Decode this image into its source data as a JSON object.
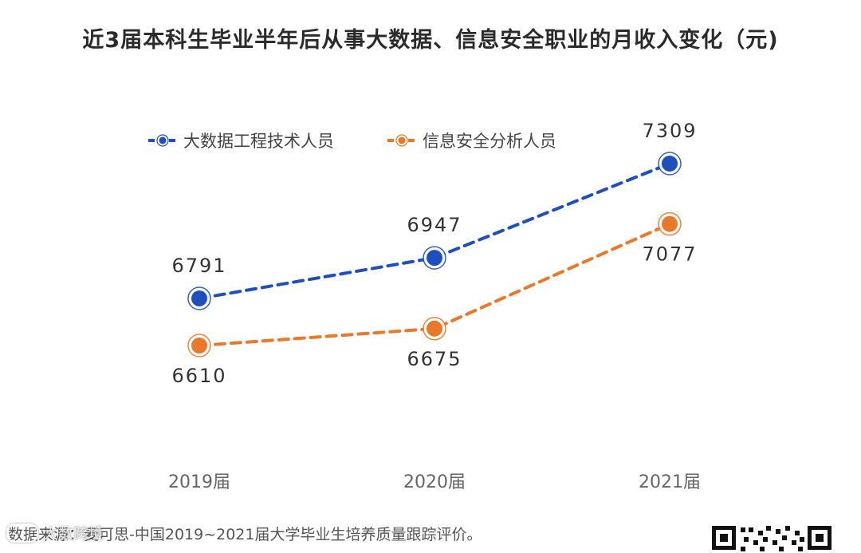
{
  "header": {
    "title": "近3届本科生毕业半年后从事大数据、信息安全职业的月收入变化（元)"
  },
  "footer": {
    "source": "数据来源：麦可思-中国2019~2021届大学毕业生培养质量跟踪评价。",
    "watermark": "大数跨境"
  },
  "colors": {
    "blue": "#1f4fbf",
    "orange": "#e8782a",
    "axis_text": "#666666",
    "value_text": "#333333"
  },
  "chart_data": {
    "type": "line",
    "categories": [
      "2019届",
      "2020届",
      "2021届"
    ],
    "series": [
      {
        "name": "大数据工程技术人员",
        "values": [
          6791,
          6947,
          7309
        ],
        "color": "#1f4fbf",
        "label_position": "above"
      },
      {
        "name": "信息安全分析人员",
        "values": [
          6610,
          6675,
          7077
        ],
        "color": "#e8782a",
        "label_position": "below"
      }
    ],
    "title": "近3届本科生毕业半年后从事大数据、信息安全职业的月收入变化（元)",
    "xlabel": "",
    "ylabel": "",
    "ylim": [
      6400,
      7400
    ],
    "line_style": "dashed",
    "grid": false,
    "legend": "top-left"
  }
}
